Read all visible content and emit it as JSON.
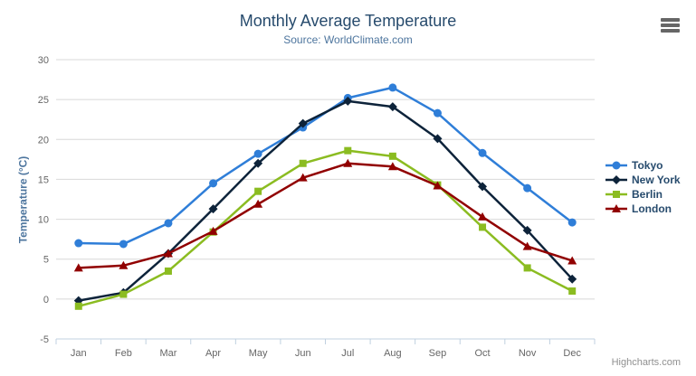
{
  "chart_data": {
    "type": "line",
    "title": "Monthly Average Temperature",
    "subtitle": "Source: WorldClimate.com",
    "xlabel": "",
    "ylabel": "Temperature (°C)",
    "categories": [
      "Jan",
      "Feb",
      "Mar",
      "Apr",
      "May",
      "Jun",
      "Jul",
      "Aug",
      "Sep",
      "Oct",
      "Nov",
      "Dec"
    ],
    "ylim": [
      -5,
      30
    ],
    "ytick_step": 5,
    "grid": true,
    "legend_position": "right",
    "series": [
      {
        "name": "Tokyo",
        "marker": "circle",
        "color": "#2f7ed8",
        "values": [
          7.0,
          6.9,
          9.5,
          14.5,
          18.2,
          21.5,
          25.2,
          26.5,
          23.3,
          18.3,
          13.9,
          9.6
        ]
      },
      {
        "name": "New York",
        "marker": "diamond",
        "color": "#0d233a",
        "values": [
          -0.2,
          0.8,
          5.7,
          11.3,
          17.0,
          22.0,
          24.8,
          24.1,
          20.1,
          14.1,
          8.6,
          2.5
        ]
      },
      {
        "name": "Berlin",
        "marker": "square",
        "color": "#8bbc21",
        "values": [
          -0.9,
          0.6,
          3.5,
          8.4,
          13.5,
          17.0,
          18.6,
          17.9,
          14.3,
          9.0,
          3.9,
          1.0
        ]
      },
      {
        "name": "London",
        "marker": "triangle",
        "color": "#910000",
        "values": [
          3.9,
          4.2,
          5.7,
          8.5,
          11.9,
          15.2,
          17.0,
          16.6,
          14.2,
          10.3,
          6.6,
          4.8
        ]
      }
    ],
    "credits": "Highcharts.com"
  },
  "icons": {
    "export_menu": "hamburger-icon"
  },
  "colors": {
    "title": "#274b6d",
    "subtitle": "#4d759e",
    "axis_title": "#4d759e",
    "tick_label": "#666666",
    "grid": "#d8d8d8",
    "axis_line": "#c0d0e0",
    "legend_text": "#274b6d",
    "credits": "#909090",
    "menu_icon": "#666666",
    "background": "#ffffff"
  }
}
